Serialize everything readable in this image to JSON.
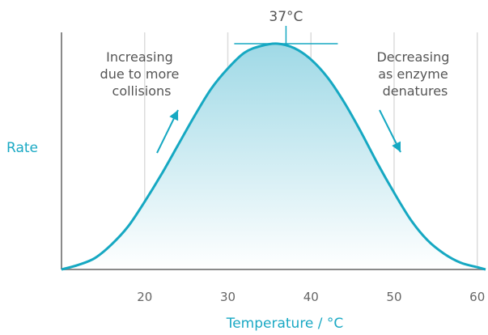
{
  "chart_data": {
    "type": "area",
    "title": "",
    "xlabel": "Temperature / °C",
    "ylabel": "Rate",
    "xlim": [
      10,
      61
    ],
    "ylim": [
      0,
      1.05
    ],
    "xticks": [
      20,
      30,
      40,
      50,
      60
    ],
    "grid": true,
    "x": [
      10,
      12,
      14,
      16,
      18,
      20,
      22,
      24,
      26,
      28,
      30,
      32,
      34,
      36,
      38,
      40,
      42,
      44,
      46,
      48,
      50,
      52,
      54,
      56,
      58,
      60,
      61
    ],
    "y": [
      0.0,
      0.02,
      0.05,
      0.11,
      0.19,
      0.3,
      0.42,
      0.55,
      0.68,
      0.8,
      0.89,
      0.96,
      0.99,
      1.0,
      0.98,
      0.93,
      0.85,
      0.74,
      0.61,
      0.47,
      0.34,
      0.22,
      0.13,
      0.07,
      0.03,
      0.01,
      0.0
    ],
    "peak": {
      "x": 37,
      "label": "37°C"
    },
    "annotations": [
      {
        "lines": [
          "Increasing",
          "due to more",
          "collisions"
        ],
        "arrow": "up"
      },
      {
        "lines": [
          "Decreasing",
          "as enzyme",
          "denatures"
        ],
        "arrow": "down"
      }
    ]
  },
  "colors": {
    "curve": "#16a8c2",
    "fill_top": "#9fd9e6",
    "fill_bottom": "#ffffff",
    "axis": "#8a8a8a",
    "grid": "#dcdcdc",
    "arrow": "#16a8c2",
    "title": "#1aa9c4"
  }
}
